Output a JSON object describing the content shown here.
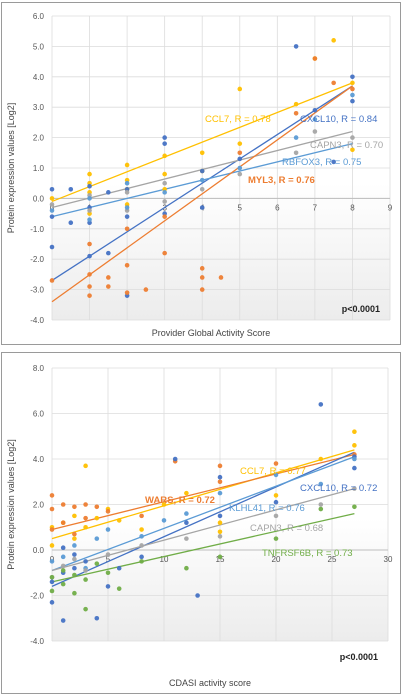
{
  "chart_data": [
    {
      "type": "scatter",
      "xlabel": "Provider Global Activity Score",
      "ylabel": "Protein expression values [Log2]",
      "xlim": [
        0,
        9
      ],
      "ylim": [
        -4,
        6
      ],
      "xticks": [
        "0",
        "1",
        "2",
        "3",
        "4",
        "5",
        "6",
        "7",
        "8",
        "9"
      ],
      "yticks": [
        "-4.0",
        "-3.0",
        "-2.0",
        "-1.0",
        "0.0",
        "1.0",
        "2.0",
        "3.0",
        "4.0",
        "5.0",
        "6.0"
      ],
      "grid": true,
      "annotation": "p<0.0001",
      "series": [
        {
          "name": "CCL7, R = 0.78",
          "color": "#FFC000",
          "trend": [
            [
              0,
              -0.1
            ],
            [
              8,
              3.8
            ]
          ],
          "points": [
            [
              0,
              0.0
            ],
            [
              1,
              0.8
            ],
            [
              1,
              0.2
            ],
            [
              1,
              0.5
            ],
            [
              1,
              -0.5
            ],
            [
              2,
              1.1
            ],
            [
              2,
              0.6
            ],
            [
              2,
              0.3
            ],
            [
              2,
              -0.2
            ],
            [
              3,
              1.4
            ],
            [
              3,
              0.8
            ],
            [
              3,
              0.3
            ],
            [
              4,
              1.5
            ],
            [
              4,
              0.9
            ],
            [
              5,
              1.8
            ],
            [
              5,
              3.6
            ],
            [
              6.5,
              3.1
            ],
            [
              7,
              4.6
            ],
            [
              7.5,
              5.2
            ],
            [
              8,
              3.8
            ],
            [
              8,
              1.6
            ]
          ]
        },
        {
          "name": "CXCL10, R = 0.84",
          "color": "#4472C4",
          "trend": [
            [
              0,
              -2.7
            ],
            [
              8,
              3.7
            ]
          ],
          "points": [
            [
              0,
              -1.6
            ],
            [
              0,
              0.3
            ],
            [
              0,
              -0.6
            ],
            [
              0.5,
              -0.8
            ],
            [
              0.5,
              0.3
            ],
            [
              1,
              -0.3
            ],
            [
              1,
              -0.8
            ],
            [
              1,
              -1.9
            ],
            [
              1,
              0.4
            ],
            [
              1.5,
              -1.8
            ],
            [
              1.5,
              0.2
            ],
            [
              2,
              -3.2
            ],
            [
              2,
              -0.6
            ],
            [
              2,
              0.3
            ],
            [
              3,
              2.0
            ],
            [
              3,
              1.8
            ],
            [
              3,
              -0.5
            ],
            [
              4,
              0.9
            ],
            [
              4,
              -0.3
            ],
            [
              5,
              1.3
            ],
            [
              6.5,
              5.0
            ],
            [
              7,
              2.9
            ],
            [
              8,
              4.0
            ],
            [
              8,
              3.2
            ],
            [
              7.5,
              1.2
            ]
          ]
        },
        {
          "name": "CAPN3, R = 0.70",
          "color": "#A5A5A5",
          "trend": [
            [
              0,
              -0.3
            ],
            [
              8,
              2.2
            ]
          ],
          "points": [
            [
              0,
              -0.2
            ],
            [
              1,
              -0.4
            ],
            [
              1,
              0.1
            ],
            [
              2,
              0.2
            ],
            [
              2,
              -0.4
            ],
            [
              3,
              0.5
            ],
            [
              3,
              -0.1
            ],
            [
              4,
              0.3
            ],
            [
              5,
              0.8
            ],
            [
              6.5,
              1.5
            ],
            [
              7,
              2.2
            ],
            [
              8,
              2.0
            ]
          ]
        },
        {
          "name": "RBFOX3, R = 0.75",
          "color": "#5B9BD5",
          "trend": [
            [
              0,
              -0.6
            ],
            [
              8,
              1.8
            ]
          ],
          "points": [
            [
              0,
              -0.4
            ],
            [
              1,
              -0.7
            ],
            [
              1,
              0.0
            ],
            [
              2,
              -0.3
            ],
            [
              2,
              0.5
            ],
            [
              3,
              0.2
            ],
            [
              4,
              0.6
            ],
            [
              5,
              1.0
            ],
            [
              6.5,
              2.0
            ],
            [
              7,
              2.6
            ],
            [
              8,
              3.4
            ]
          ]
        },
        {
          "name": "MYL3, R = 0.76",
          "color": "#ED7D31",
          "trend": [
            [
              0,
              -3.4
            ],
            [
              8,
              3.7
            ]
          ],
          "points": [
            [
              0,
              -2.7
            ],
            [
              1,
              -3.2
            ],
            [
              1,
              -2.9
            ],
            [
              1,
              -2.5
            ],
            [
              1,
              -1.5
            ],
            [
              1.5,
              -2.6
            ],
            [
              1.5,
              -2.9
            ],
            [
              2,
              -1.0
            ],
            [
              2,
              -2.2
            ],
            [
              2,
              -3.1
            ],
            [
              2.5,
              -3.0
            ],
            [
              3,
              -1.8
            ],
            [
              3,
              -0.6
            ],
            [
              4,
              -2.3
            ],
            [
              4,
              -2.6
            ],
            [
              4,
              -3.0
            ],
            [
              4.5,
              -2.6
            ],
            [
              5,
              1.5
            ],
            [
              6.5,
              2.8
            ],
            [
              7,
              4.6
            ],
            [
              7.5,
              3.8
            ],
            [
              8,
              3.6
            ]
          ]
        }
      ]
    },
    {
      "type": "scatter",
      "xlabel": "CDASI activity score",
      "ylabel": "Protein expression values [Log2]",
      "xlim": [
        0,
        30
      ],
      "ylim": [
        -4,
        8
      ],
      "xticks": [
        "0",
        "5",
        "10",
        "15",
        "20",
        "25",
        "30"
      ],
      "yticks": [
        "-4.0",
        "-2.0",
        "0.0",
        "2.0",
        "4.0",
        "6.0",
        "8.0"
      ],
      "grid": true,
      "annotation": "p<0.0001",
      "series": [
        {
          "name": "CCL7, R = 0.77",
          "color": "#FFC000",
          "trend": [
            [
              0,
              0.5
            ],
            [
              27,
              4.4
            ]
          ],
          "points": [
            [
              0,
              1.0
            ],
            [
              0,
              0.2
            ],
            [
              1,
              1.2
            ],
            [
              2,
              0.5
            ],
            [
              2,
              1.5
            ],
            [
              3,
              3.7
            ],
            [
              3,
              1.0
            ],
            [
              4,
              1.4
            ],
            [
              5,
              1.8
            ],
            [
              6,
              1.3
            ],
            [
              8,
              0.9
            ],
            [
              10,
              2.0
            ],
            [
              12,
              2.5
            ],
            [
              15,
              1.2
            ],
            [
              15,
              0.8
            ],
            [
              20,
              2.4
            ],
            [
              24,
              4.0
            ],
            [
              27,
              5.2
            ],
            [
              27,
              4.6
            ]
          ]
        },
        {
          "name": "WARS, R = 0.72",
          "color": "#ED7D31",
          "trend": [
            [
              0,
              0.9
            ],
            [
              27,
              4.2
            ]
          ],
          "points": [
            [
              0,
              2.4
            ],
            [
              0,
              1.8
            ],
            [
              0,
              0.9
            ],
            [
              1,
              2.0
            ],
            [
              1,
              1.2
            ],
            [
              2,
              1.9
            ],
            [
              2,
              0.7
            ],
            [
              3,
              2.0
            ],
            [
              3,
              1.4
            ],
            [
              4,
              1.9
            ],
            [
              5,
              1.7
            ],
            [
              8,
              1.5
            ],
            [
              11,
              3.9
            ],
            [
              15,
              3.7
            ],
            [
              15,
              3.0
            ],
            [
              20,
              3.8
            ],
            [
              27,
              4.2
            ]
          ]
        },
        {
          "name": "CXCL10, R = 0.72",
          "color": "#4472C4",
          "trend": [
            [
              0,
              -1.6
            ],
            [
              27,
              4.3
            ]
          ],
          "points": [
            [
              0,
              -2.3
            ],
            [
              0,
              -1.4
            ],
            [
              1,
              -3.1
            ],
            [
              1,
              -1.0
            ],
            [
              1,
              0.1
            ],
            [
              2,
              -0.8
            ],
            [
              2,
              -0.2
            ],
            [
              3,
              -0.5
            ],
            [
              4,
              -3.0
            ],
            [
              5,
              -1.6
            ],
            [
              6,
              -0.8
            ],
            [
              8,
              -0.3
            ],
            [
              11,
              4.0
            ],
            [
              12,
              1.2
            ],
            [
              13,
              -2.0
            ],
            [
              15,
              3.2
            ],
            [
              15,
              1.5
            ],
            [
              20,
              2.1
            ],
            [
              24,
              6.4
            ],
            [
              27,
              4.1
            ],
            [
              27,
              3.6
            ]
          ]
        },
        {
          "name": "KLHL41, R = 0.76",
          "color": "#5B9BD5",
          "trend": [
            [
              0,
              -0.9
            ],
            [
              27,
              4.1
            ]
          ],
          "points": [
            [
              0,
              -0.5
            ],
            [
              1,
              -0.3
            ],
            [
              2,
              0.2
            ],
            [
              3,
              -0.8
            ],
            [
              4,
              0.5
            ],
            [
              5,
              0.9
            ],
            [
              8,
              0.6
            ],
            [
              10,
              1.3
            ],
            [
              12,
              1.6
            ],
            [
              15,
              2.5
            ],
            [
              20,
              3.3
            ],
            [
              24,
              2.9
            ],
            [
              27,
              4.0
            ]
          ]
        },
        {
          "name": "CAPN3, R = 0.68",
          "color": "#A5A5A5",
          "trend": [
            [
              0,
              -0.9
            ],
            [
              27,
              2.7
            ]
          ],
          "points": [
            [
              0,
              -1.2
            ],
            [
              1,
              -0.7
            ],
            [
              2,
              -0.4
            ],
            [
              3,
              -0.9
            ],
            [
              5,
              -0.2
            ],
            [
              8,
              0.2
            ],
            [
              12,
              0.5
            ],
            [
              15,
              0.6
            ],
            [
              20,
              1.5
            ],
            [
              24,
              2.0
            ],
            [
              27,
              2.7
            ]
          ]
        },
        {
          "name": "TNFRSF6B, R = 0.73",
          "color": "#70AD47",
          "trend": [
            [
              0,
              -1.4
            ],
            [
              27,
              1.6
            ]
          ],
          "points": [
            [
              0,
              -1.8
            ],
            [
              0,
              -1.2
            ],
            [
              1,
              -1.5
            ],
            [
              1,
              -0.9
            ],
            [
              2,
              -1.9
            ],
            [
              2,
              -1.1
            ],
            [
              3,
              -2.6
            ],
            [
              3,
              -1.3
            ],
            [
              4,
              -0.6
            ],
            [
              5,
              -1.0
            ],
            [
              6,
              -1.7
            ],
            [
              8,
              -0.5
            ],
            [
              12,
              -0.8
            ],
            [
              15,
              -0.3
            ],
            [
              20,
              0.5
            ],
            [
              24,
              1.8
            ],
            [
              27,
              1.9
            ]
          ]
        }
      ]
    }
  ]
}
